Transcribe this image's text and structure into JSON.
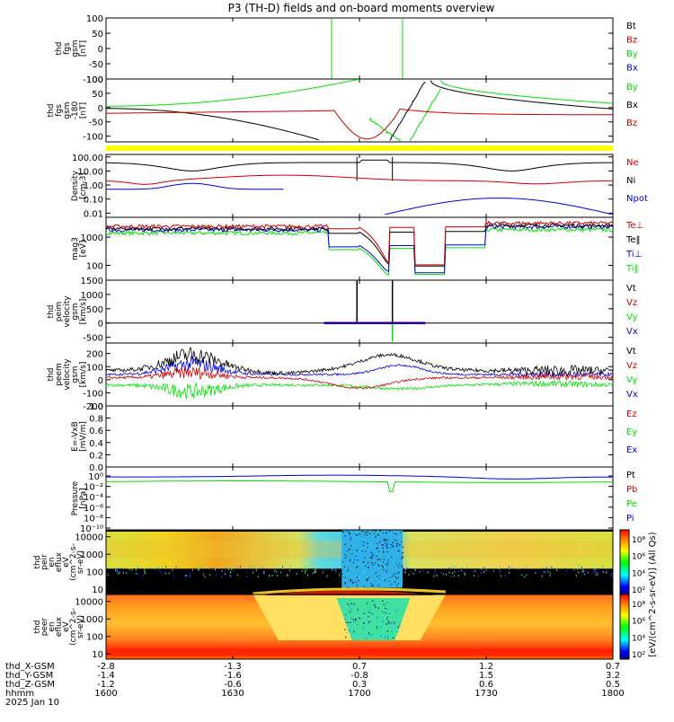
{
  "title": "P3 (TH-D) fields and on-board moments overview",
  "colors": {
    "black": "#000000",
    "red": "#cc0000",
    "green": "#00e000",
    "blue": "#0000dd",
    "yellow": "#ffff00"
  },
  "chart_data": [
    {
      "type": "line",
      "panel": "fgs",
      "ylabel": [
        "thd",
        "fgs",
        "gsm",
        "[nT]"
      ],
      "ylim": [
        -100,
        100
      ],
      "ticks": [
        "100",
        "50",
        "0",
        "-50",
        "-100"
      ],
      "legend": [
        {
          "name": "Bt",
          "color": "black"
        },
        {
          "name": "Bz",
          "color": "red"
        },
        {
          "name": "By",
          "color": "green"
        },
        {
          "name": "Bx",
          "color": "blue"
        }
      ]
    },
    {
      "type": "line",
      "panel": "fgs_dsl",
      "ylabel": [
        "thd",
        "fgs",
        "gsm",
        "-180",
        "[nT]"
      ],
      "ylim": [
        -120,
        100
      ],
      "ticks": [
        "100",
        "50",
        "0",
        "-50",
        "-100"
      ],
      "legend": [
        {
          "name": "By",
          "color": "green"
        },
        {
          "name": "Bx",
          "color": "black"
        },
        {
          "name": "Bz",
          "color": "red"
        }
      ]
    },
    {
      "type": "line",
      "panel": "density",
      "ylabel": [
        "Density",
        "[cm-3]"
      ],
      "scale": "log",
      "ylim": [
        0.005,
        150
      ],
      "ticks": [
        "100.00",
        "10.00",
        "1.00",
        "0.10",
        "0.01"
      ],
      "legend": [
        {
          "name": "Ne",
          "color": "red"
        },
        {
          "name": "Ni",
          "color": "black"
        },
        {
          "name": "Npot",
          "color": "blue"
        }
      ]
    },
    {
      "type": "line",
      "panel": "temperature",
      "ylabel": [
        "mag3",
        "[eV]"
      ],
      "scale": "log",
      "ylim": [
        30,
        5000
      ],
      "ticks": [
        "1000",
        "100"
      ],
      "legend": [
        {
          "name": "Te⊥",
          "color": "red"
        },
        {
          "name": "Te‖",
          "color": "black"
        },
        {
          "name": "Ti⊥",
          "color": "blue"
        },
        {
          "name": "Ti‖",
          "color": "green"
        }
      ]
    },
    {
      "type": "line",
      "panel": "peim_velocity",
      "ylabel": [
        "thd",
        "peim",
        "velocity",
        "gsm",
        "[km/s]"
      ],
      "ylim": [
        -700,
        1500
      ],
      "ticks": [
        "1500",
        "1000",
        "500",
        "0",
        "-500"
      ],
      "legend": [
        {
          "name": "Vt",
          "color": "black"
        },
        {
          "name": "Vz",
          "color": "red"
        },
        {
          "name": "Vy",
          "color": "green"
        },
        {
          "name": "Vx",
          "color": "blue"
        }
      ]
    },
    {
      "type": "line",
      "panel": "peem_velocity",
      "ylabel": [
        "thd",
        "peem",
        "velocity",
        "gsm",
        "[km/s]"
      ],
      "ylim": [
        -200,
        280
      ],
      "ticks": [
        "200",
        "100",
        "0",
        "-100",
        "-200"
      ],
      "legend": [
        {
          "name": "Vt",
          "color": "black"
        },
        {
          "name": "Vz",
          "color": "red"
        },
        {
          "name": "Vy",
          "color": "green"
        },
        {
          "name": "Vx",
          "color": "blue"
        }
      ]
    },
    {
      "type": "line",
      "panel": "efield",
      "ylabel": [
        "E=-VxB",
        "[mV/m]"
      ],
      "ylim": [
        0,
        1
      ],
      "ticks": [
        "1.0",
        "0.8",
        "0.6",
        "0.4",
        "0.2",
        "0.0"
      ],
      "legend": [
        {
          "name": "Ez",
          "color": "red"
        },
        {
          "name": "Ey",
          "color": "green"
        },
        {
          "name": "Ex",
          "color": "blue"
        }
      ]
    },
    {
      "type": "line",
      "panel": "pressure",
      "ylabel": [
        "Pressure",
        "[nPa]"
      ],
      "scale": "log",
      "ticks": [
        "10⁰",
        "10⁻²",
        "10⁻⁴",
        "10⁻⁶",
        "10⁻⁸",
        "10⁻¹⁰"
      ],
      "legend": [
        {
          "name": "Pt",
          "color": "black"
        },
        {
          "name": "Pb",
          "color": "red"
        },
        {
          "name": "Pe",
          "color": "green"
        },
        {
          "name": "Pi",
          "color": "blue"
        }
      ]
    },
    {
      "type": "heatmap",
      "panel": "peir_eflux",
      "ylabel": [
        "thd",
        "peir",
        "en",
        "eflux",
        "eV",
        "(cm^2-s-",
        "sr-eV)"
      ],
      "scale": "log",
      "ylim": [
        5,
        25000
      ],
      "ticks": [
        "10000",
        "1000",
        "100",
        "10"
      ]
    },
    {
      "type": "heatmap",
      "panel": "peer_eflux",
      "ylabel": [
        "thd",
        "peer",
        "en",
        "eflux",
        "eV",
        "(cm^2-s-",
        "sr-eV)"
      ],
      "scale": "log",
      "ylim": [
        5,
        25000
      ],
      "ticks": [
        "10000",
        "1000",
        "100",
        "10"
      ]
    }
  ],
  "colorbar": {
    "label": "[eV/(cm^2-s-sr-eV)] (All Qs)",
    "ticks_top": [
      "10⁸",
      "10⁶",
      "10⁴",
      "10²"
    ],
    "ticks_bottom": [
      "10⁸",
      "10⁶",
      "10⁴",
      "10²"
    ]
  },
  "x_axis": {
    "rows": [
      {
        "label": "thd_X-GSM",
        "values": [
          "-2.8",
          "-1.3",
          "0.7",
          "1.2",
          "0.7"
        ]
      },
      {
        "label": "thd_Y-GSM",
        "values": [
          "-1.4",
          "-1.6",
          "-0.8",
          "1.5",
          "3.2"
        ]
      },
      {
        "label": "thd_Z-GSM",
        "values": [
          "-1.2",
          "-0.6",
          "0.3",
          "0.6",
          "0.5"
        ]
      },
      {
        "label": "hhmm",
        "values": [
          "1600",
          "1630",
          "1700",
          "1730",
          "1800"
        ]
      }
    ],
    "date": "2025 Jan 10"
  }
}
